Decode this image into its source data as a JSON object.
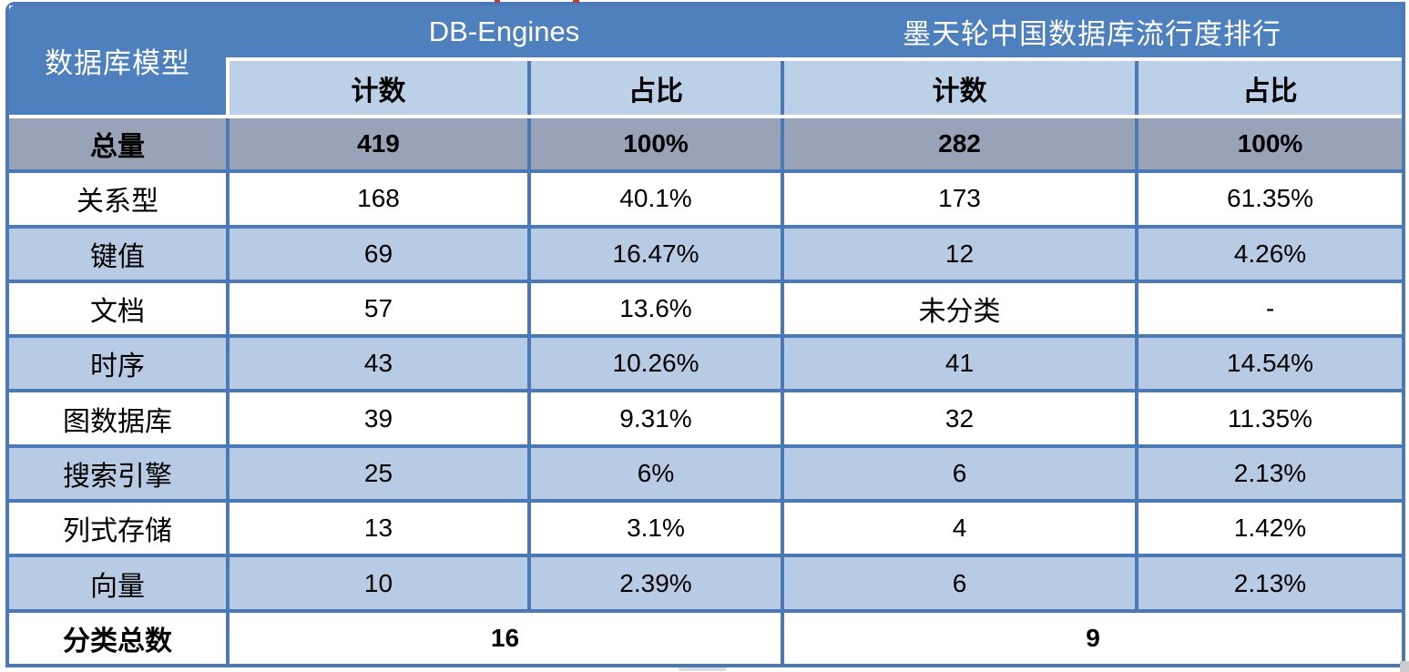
{
  "table": {
    "corner_label": "数据库模型",
    "groups": [
      {
        "label": "DB-Engines"
      },
      {
        "label": "墨天轮中国数据库流行度排行"
      }
    ],
    "subheaders": [
      "计数",
      "占比",
      "计数",
      "占比"
    ],
    "total_row": {
      "label": "总量",
      "cells": [
        "419",
        "100%",
        "282",
        "100%"
      ]
    },
    "rows": [
      {
        "label": "关系型",
        "cells": [
          "168",
          "40.1%",
          "173",
          "61.35%"
        ]
      },
      {
        "label": "键值",
        "cells": [
          "69",
          "16.47%",
          "12",
          "4.26%"
        ]
      },
      {
        "label": "文档",
        "cells": [
          "57",
          "13.6%",
          "未分类",
          "-"
        ]
      },
      {
        "label": "时序",
        "cells": [
          "43",
          "10.26%",
          "41",
          "14.54%"
        ]
      },
      {
        "label": "图数据库",
        "cells": [
          "39",
          "9.31%",
          "32",
          "11.35%"
        ]
      },
      {
        "label": "搜索引擎",
        "cells": [
          "25",
          "6%",
          "6",
          "2.13%"
        ]
      },
      {
        "label": "列式存储",
        "cells": [
          "13",
          "3.1%",
          "4",
          "1.42%"
        ]
      },
      {
        "label": "向量",
        "cells": [
          "10",
          "2.39%",
          "6",
          "2.13%"
        ]
      }
    ],
    "footer_row": {
      "label": "分类总数",
      "values": [
        "16",
        "9"
      ]
    }
  },
  "colors": {
    "header_blue": "#4E80BE",
    "border_blue": "#4A79B6",
    "subheader_blue": "#BCD0E8",
    "row_blue": "#B7CBE4",
    "total_gray": "#98A3B8"
  }
}
